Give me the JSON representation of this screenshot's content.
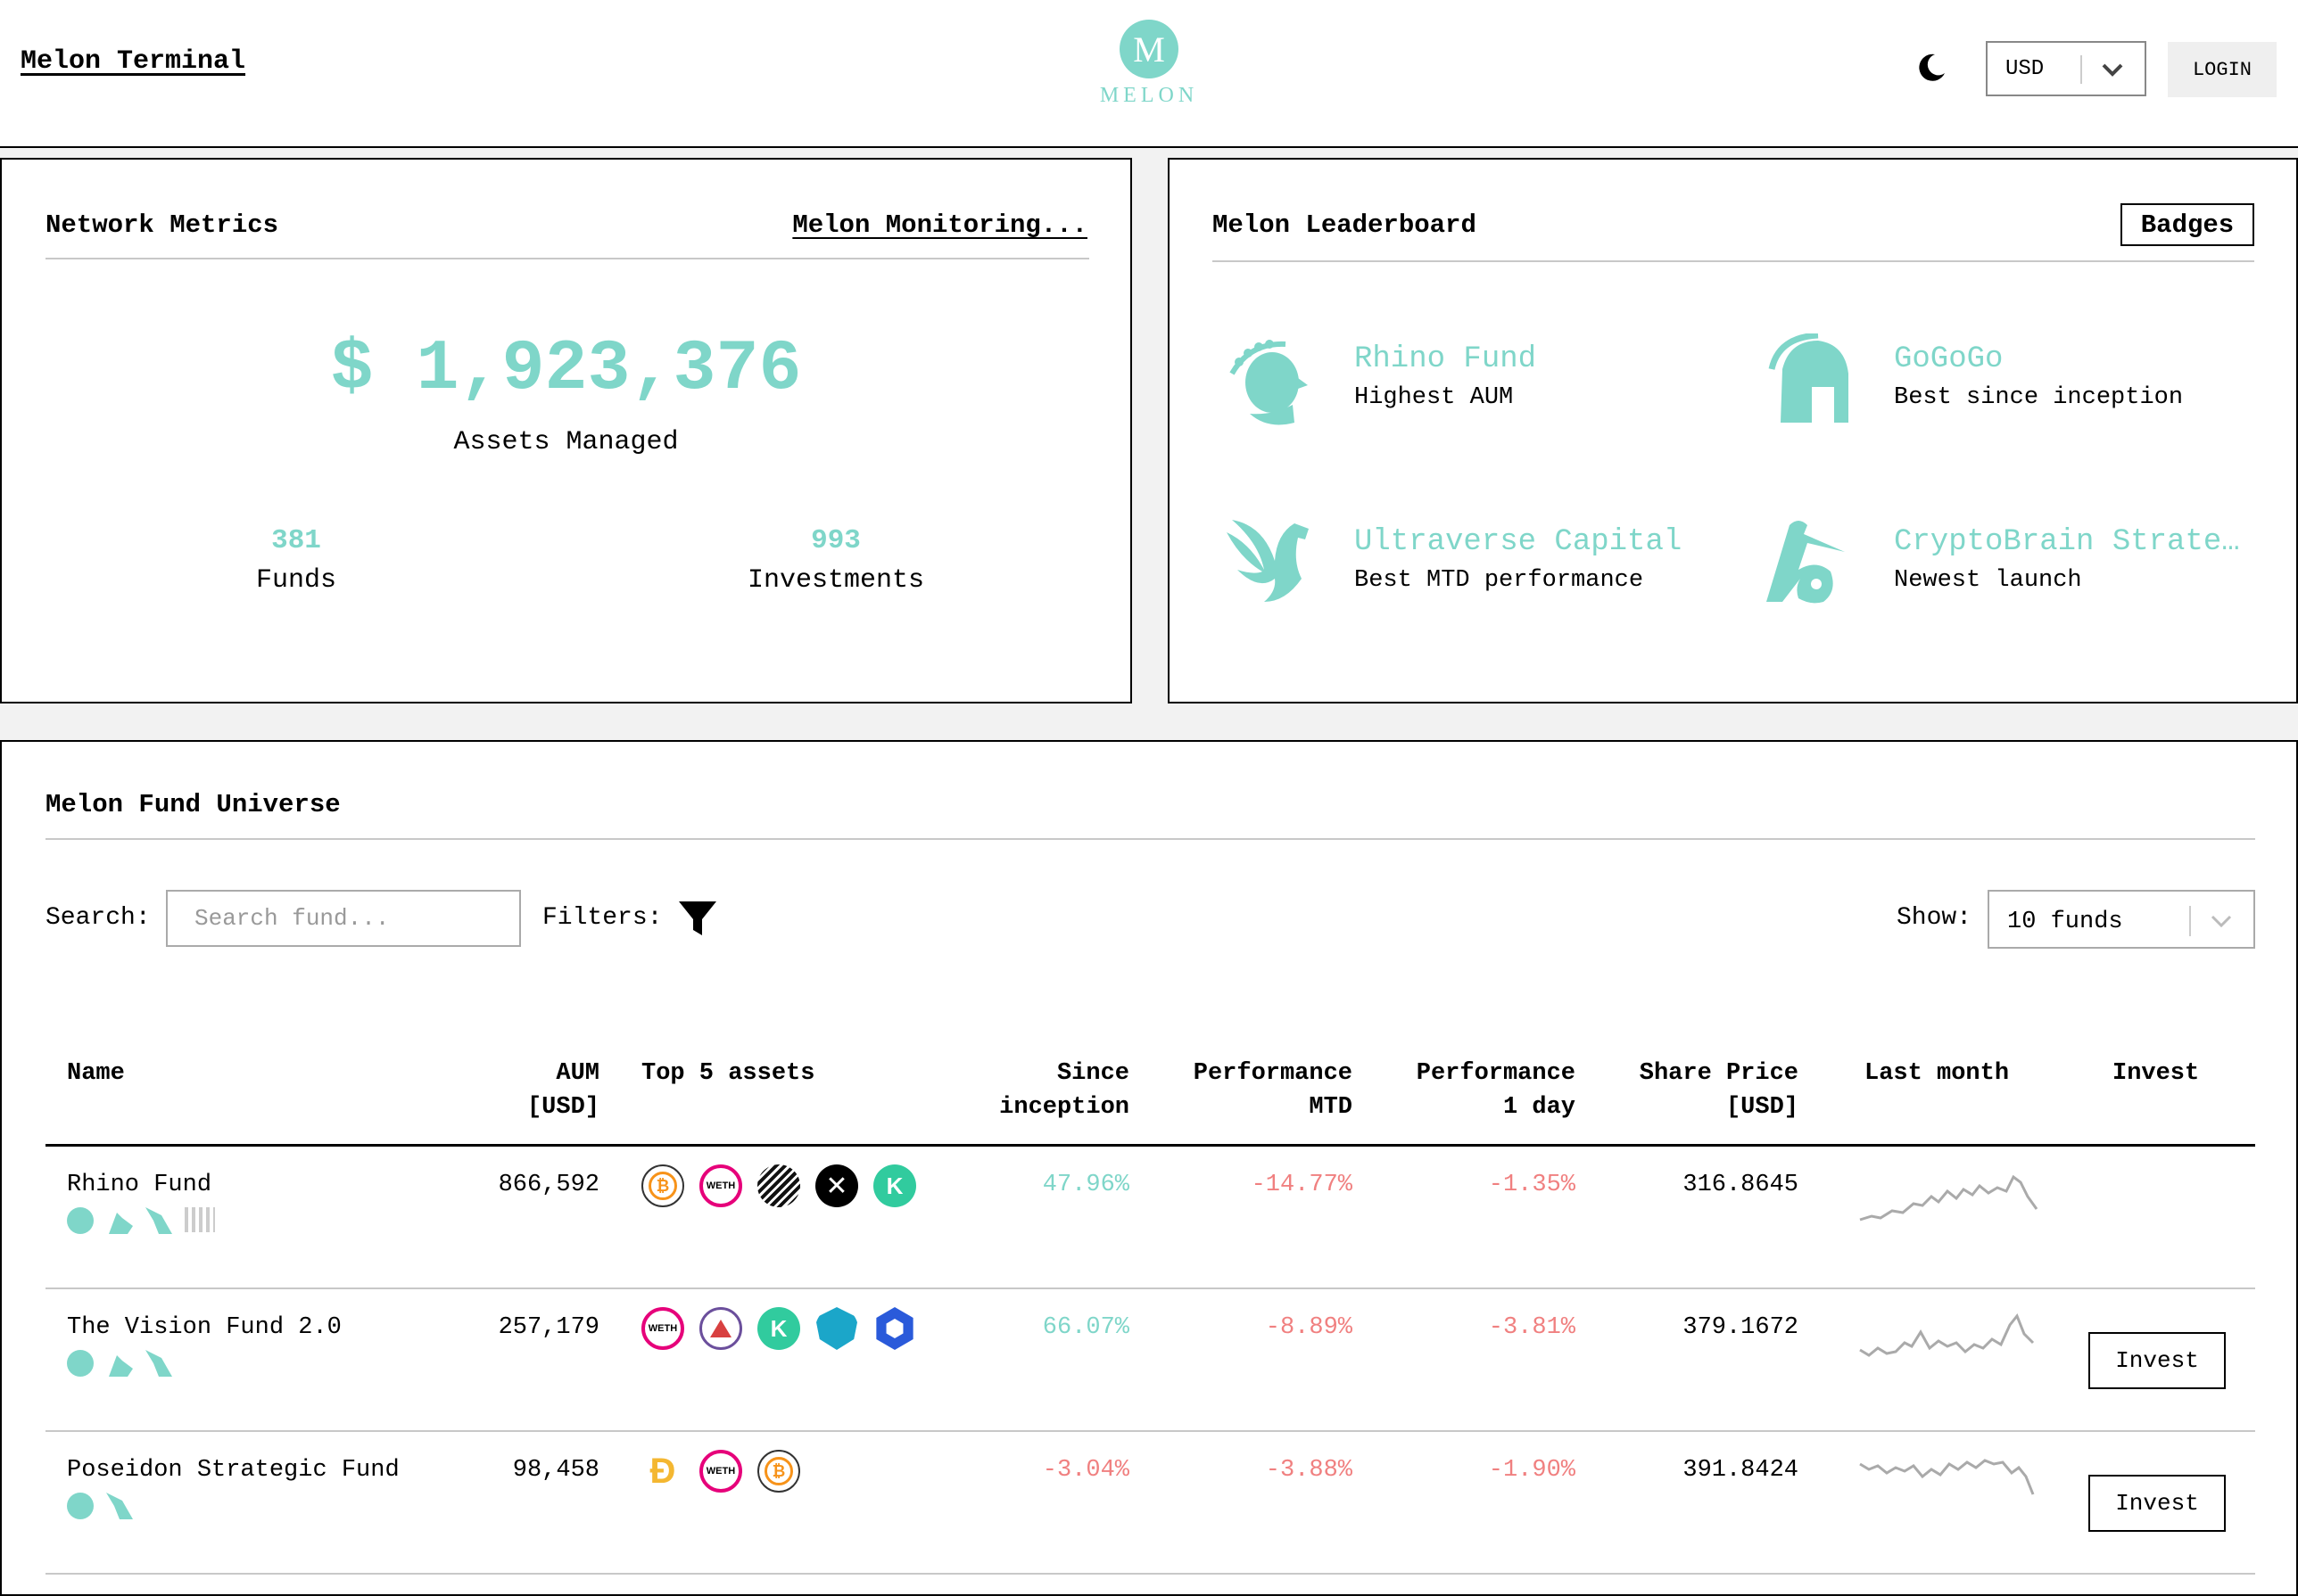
{
  "header": {
    "app_title": "Melon Terminal",
    "logo_letter": "M",
    "logo_text": "MELON",
    "currency": "USD",
    "login_label": "LOGIN"
  },
  "metrics": {
    "title": "Network Metrics",
    "monitoring_link": "Melon Monitoring...",
    "assets_managed_value": "$ 1,923,376",
    "assets_managed_label": "Assets Managed",
    "funds_count": "381",
    "funds_label": "Funds",
    "investments_count": "993",
    "investments_label": "Investments"
  },
  "leaderboard": {
    "title": "Melon Leaderboard",
    "badges_label": "Badges",
    "items": [
      {
        "fund": "Rhino Fund",
        "desc": "Highest AUM",
        "icon": "laurel-head-icon"
      },
      {
        "fund": "GoGoGo",
        "desc": "Best since inception",
        "icon": "spartan-helmet-icon"
      },
      {
        "fund": "Ultraverse Capital",
        "desc": "Best MTD performance",
        "icon": "pegasus-icon"
      },
      {
        "fund": "CryptoBrain Strate…",
        "desc": "Newest launch",
        "icon": "stork-icon"
      }
    ]
  },
  "universe": {
    "title": "Melon Fund Universe",
    "search_label": "Search:",
    "search_placeholder": "Search fund...",
    "filters_label": "Filters:",
    "show_label": "Show:",
    "show_value": "10 funds",
    "columns": {
      "name": "Name",
      "aum_1": "AUM",
      "aum_2": "[USD]",
      "assets": "Top 5 assets",
      "since_1": "Since",
      "since_2": "inception",
      "mtd_1": "Performance",
      "mtd_2": "MTD",
      "day_1": "Performance",
      "day_2": "1 day",
      "price_1": "Share Price",
      "price_2": "[USD]",
      "last_month": "Last month",
      "invest": "Invest"
    },
    "rows": [
      {
        "name": "Rhino Fund",
        "aum": "866,592",
        "since": "47.96%",
        "mtd": "-14.77%",
        "day": "-1.35%",
        "price": "316.8645",
        "invest": ""
      },
      {
        "name": "The Vision Fund 2.0",
        "aum": "257,179",
        "since": "66.07%",
        "mtd": "-8.89%",
        "day": "-3.81%",
        "price": "379.1672",
        "invest": "Invest"
      },
      {
        "name": "Poseidon Strategic Fund",
        "aum": "98,458",
        "since": "-3.04%",
        "mtd": "-3.88%",
        "day": "-1.90%",
        "price": "391.8424",
        "invest": "Invest"
      }
    ],
    "asset_labels": {
      "weth": "WETH"
    }
  },
  "colors": {
    "accent": "#7fd6c9",
    "negative": "#f08080",
    "background": "#f2f2f2"
  }
}
